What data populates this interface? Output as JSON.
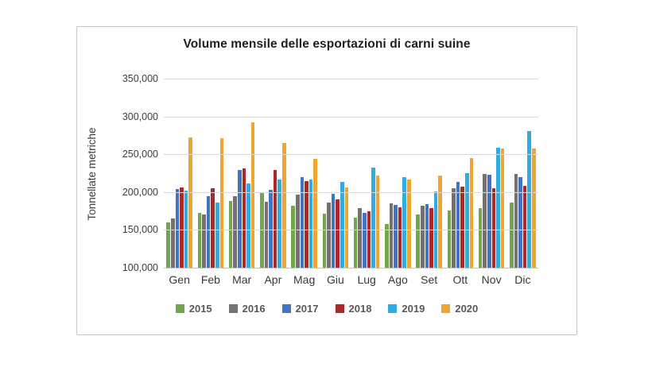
{
  "chart_data": {
    "type": "bar",
    "title": "Volume mensile delle esportazioni di carni suine",
    "ylabel": "Tonnellate metriche",
    "xlabel": "",
    "categories": [
      "Gen",
      "Feb",
      "Mar",
      "Apr",
      "Mag",
      "Giu",
      "Lug",
      "Ago",
      "Set",
      "Ott",
      "Nov",
      "Dic"
    ],
    "series": [
      {
        "name": "2015",
        "color": "#71A64E",
        "values": [
          160000,
          172000,
          188000,
          199000,
          182000,
          171000,
          166000,
          158000,
          170000,
          176000,
          179000,
          186000
        ]
      },
      {
        "name": "2016",
        "color": "#767171",
        "values": [
          165000,
          170000,
          195000,
          187000,
          197000,
          186000,
          179000,
          185000,
          182000,
          205000,
          224000,
          224000
        ]
      },
      {
        "name": "2017",
        "color": "#4472C4",
        "values": [
          204000,
          195000,
          229000,
          203000,
          220000,
          198000,
          172000,
          183000,
          184000,
          213000,
          223000,
          220000
        ]
      },
      {
        "name": "2018",
        "color": "#B02727",
        "values": [
          206000,
          205000,
          231000,
          229000,
          215000,
          190000,
          175000,
          180000,
          179000,
          207000,
          205000,
          208000
        ]
      },
      {
        "name": "2019",
        "color": "#2FACE2",
        "values": [
          202000,
          186000,
          211000,
          217000,
          217000,
          213000,
          232000,
          220000,
          201000,
          225000,
          259000,
          281000
        ]
      },
      {
        "name": "2020",
        "color": "#F0A432",
        "values": [
          272000,
          271000,
          292000,
          265000,
          244000,
          206000,
          222000,
          217000,
          222000,
          245000,
          258000,
          258000
        ]
      }
    ],
    "ylim": [
      100000,
      350000
    ],
    "ytick_step": 50000,
    "ytick_labels": [
      "350,000",
      "300,000",
      "250,000",
      "200,000",
      "150,000",
      "100,000"
    ],
    "grid": true,
    "legend_position": "bottom"
  }
}
